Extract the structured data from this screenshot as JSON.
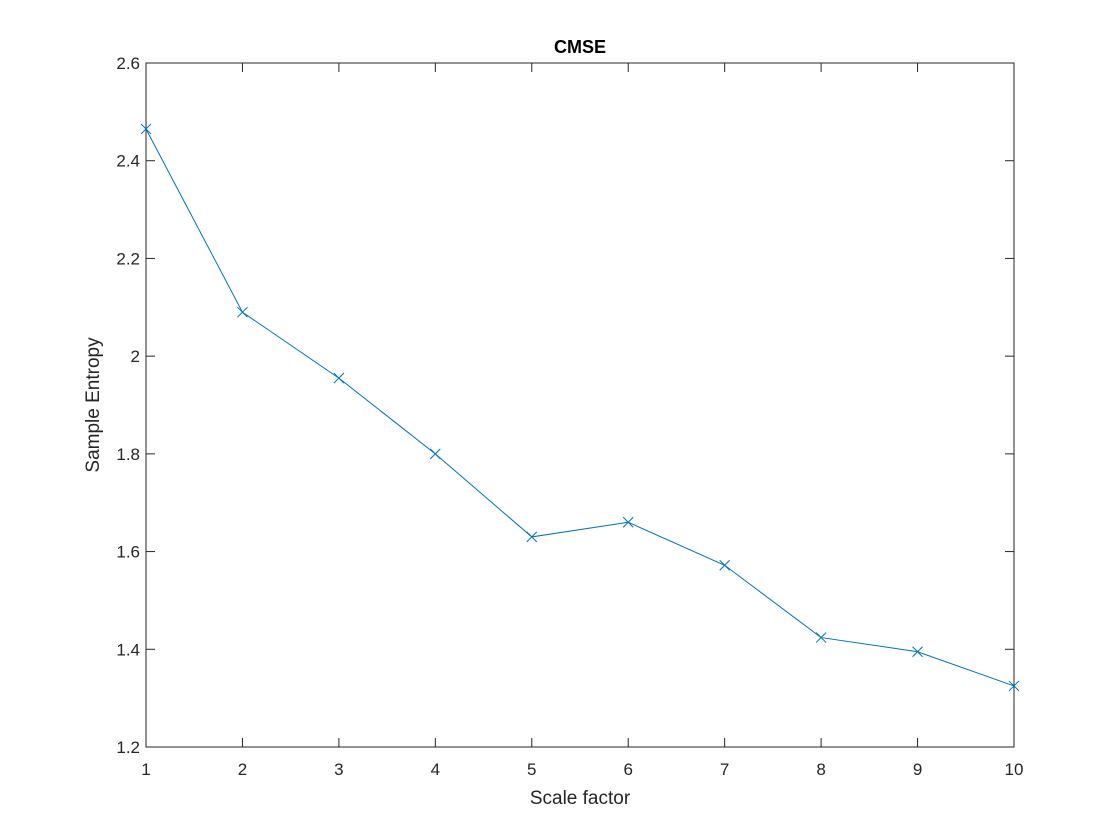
{
  "chart_data": {
    "type": "line",
    "title": "CMSE",
    "xlabel": "Scale factor",
    "ylabel": "Sample Entropy",
    "xlim": [
      1,
      10
    ],
    "ylim": [
      1.2,
      2.6
    ],
    "xticks": [
      1,
      2,
      3,
      4,
      5,
      6,
      7,
      8,
      9,
      10
    ],
    "yticks": [
      1.2,
      1.4,
      1.6,
      1.8,
      2,
      2.2,
      2.4,
      2.6
    ],
    "grid": false,
    "marker": "x",
    "series": [
      {
        "x": [
          1,
          2,
          3,
          4,
          5,
          6,
          7,
          8,
          9,
          10
        ],
        "values": [
          2.465,
          2.09,
          1.955,
          1.8,
          1.63,
          1.66,
          1.572,
          1.424,
          1.395,
          1.325
        ],
        "color": "#0072BD"
      }
    ]
  }
}
